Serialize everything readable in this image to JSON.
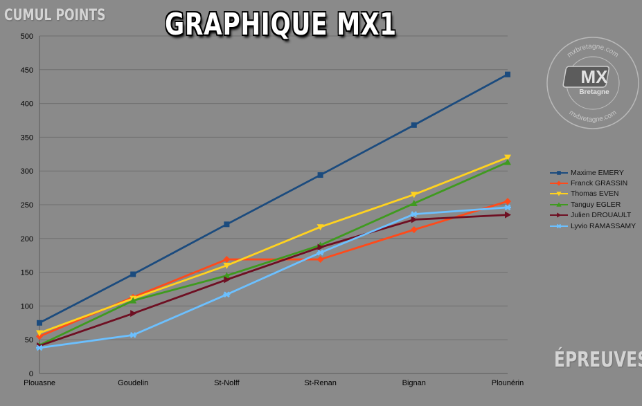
{
  "titles": {
    "main": "GRAPHIQUE MX1",
    "y_axis": "CUMUL POINTS",
    "x_axis": "ÉPREUVES"
  },
  "watermark": {
    "text": "mxbretagne.com",
    "logo_text": "MX",
    "logo_subtext": "Bretagne"
  },
  "colors": {
    "background": "#8a8a8a",
    "gridline": "#6f6f6f",
    "axis_text": "#000000"
  },
  "chart_data": {
    "type": "line",
    "categories": [
      "Plouasne",
      "Goudelin",
      "St-Nolff",
      "St-Renan",
      "Bignan",
      "Plounérin"
    ],
    "ylim": [
      0,
      500
    ],
    "yticks": [
      0,
      50,
      100,
      150,
      200,
      250,
      300,
      350,
      400,
      450,
      500
    ],
    "grid": true,
    "legend_position": "right",
    "series": [
      {
        "name": "Maxime EMERY",
        "color": "#1b4b7e",
        "marker": "square",
        "values": [
          75,
          147,
          221,
          294,
          368,
          443
        ]
      },
      {
        "name": "Franck GRASSIN",
        "color": "#ff4a1a",
        "marker": "diamond",
        "values": [
          55,
          113,
          169,
          169,
          213,
          255
        ]
      },
      {
        "name": "Thomas EVEN",
        "color": "#ffd21f",
        "marker": "triangle-down",
        "values": [
          60,
          111,
          160,
          217,
          265,
          320
        ]
      },
      {
        "name": "Tanguy EGLER",
        "color": "#3f9a1f",
        "marker": "triangle-up",
        "values": [
          42,
          108,
          145,
          190,
          252,
          313
        ]
      },
      {
        "name": "Julien DROUAULT",
        "color": "#6e0f22",
        "marker": "triangle-right",
        "values": [
          41,
          89,
          139,
          187,
          228,
          235
        ]
      },
      {
        "name": "Lyvio RAMASSAMY",
        "color": "#6cc0ff",
        "marker": "star",
        "values": [
          38,
          57,
          117,
          179,
          236,
          246
        ]
      }
    ]
  }
}
